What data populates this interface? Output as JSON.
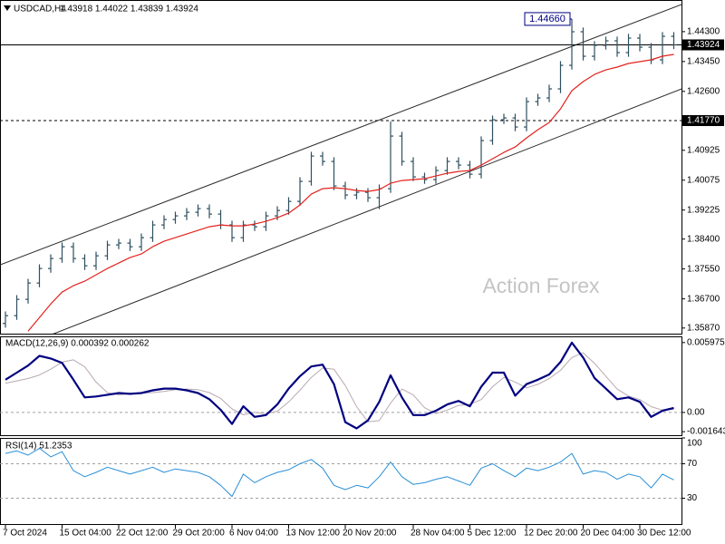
{
  "chart_data": [
    {
      "type": "ohlc",
      "title": "USDCAD,H4",
      "subtitle": "1.43918 1.44022 1.43839 1.43924",
      "color": "#2e5060",
      "open": [
        1.36,
        1.36222,
        1.36686,
        1.3715,
        1.37563,
        1.37847,
        1.38182,
        1.37847,
        1.37641,
        1.37924,
        1.38234,
        1.38286,
        1.38182,
        1.3844,
        1.38802,
        1.38956,
        1.3906,
        1.39163,
        1.39266,
        1.39111,
        1.38802,
        1.3844,
        1.38802,
        1.3875,
        1.3906,
        1.39214,
        1.39472,
        1.4004,
        1.40762,
        1.40608,
        1.39911,
        1.39653,
        1.3973,
        1.39576,
        1.39834,
        1.4133,
        1.40608,
        1.40169,
        1.40092,
        1.4035,
        1.40608,
        1.40504,
        1.40246,
        1.41201,
        1.41794,
        1.41846,
        1.41588,
        1.4231,
        1.42414,
        1.42672,
        1.43342,
        1.44297,
        1.436,
        1.4391,
        1.44039,
        1.43704,
        1.44116,
        1.43858,
        1.43497,
        1.44168
      ],
      "high": [
        1.36342,
        1.36806,
        1.3727,
        1.37683,
        1.37967,
        1.38302,
        1.38302,
        1.37967,
        1.38044,
        1.38354,
        1.38406,
        1.38406,
        1.3856,
        1.38922,
        1.39076,
        1.3918,
        1.39283,
        1.39386,
        1.39386,
        1.39231,
        1.38922,
        1.38922,
        1.38922,
        1.3918,
        1.39334,
        1.39592,
        1.4016,
        1.40882,
        1.40882,
        1.40728,
        1.40031,
        1.3985,
        1.3985,
        1.39954,
        1.41743,
        1.4145,
        1.40728,
        1.40289,
        1.4047,
        1.40728,
        1.40728,
        1.40624,
        1.41321,
        1.41914,
        1.41966,
        1.41966,
        1.4243,
        1.42534,
        1.42792,
        1.43462,
        1.4466,
        1.44417,
        1.4403,
        1.44159,
        1.44159,
        1.44236,
        1.44236,
        1.43978,
        1.44288,
        1.44288
      ],
      "low": [
        1.3588,
        1.36102,
        1.36566,
        1.3703,
        1.37443,
        1.37727,
        1.37727,
        1.37521,
        1.37521,
        1.37804,
        1.38114,
        1.38062,
        1.38062,
        1.3832,
        1.38682,
        1.38836,
        1.3894,
        1.39043,
        1.38991,
        1.38682,
        1.3832,
        1.3832,
        1.3863,
        1.3863,
        1.3894,
        1.39094,
        1.39352,
        1.3992,
        1.40488,
        1.39791,
        1.39533,
        1.39533,
        1.39456,
        1.3925,
        1.39714,
        1.40488,
        1.40049,
        1.39972,
        1.39972,
        1.4023,
        1.40384,
        1.40126,
        1.40126,
        1.41081,
        1.41674,
        1.41468,
        1.41468,
        1.4219,
        1.42294,
        1.42552,
        1.43222,
        1.4348,
        1.4348,
        1.4379,
        1.43584,
        1.43584,
        1.43738,
        1.43377,
        1.43377,
        1.43804
      ],
      "close": [
        1.36222,
        1.36686,
        1.3715,
        1.37563,
        1.37847,
        1.38182,
        1.37847,
        1.37641,
        1.37924,
        1.38234,
        1.38286,
        1.38182,
        1.3844,
        1.38802,
        1.38956,
        1.3906,
        1.39163,
        1.39266,
        1.39111,
        1.38802,
        1.3844,
        1.38802,
        1.3875,
        1.3906,
        1.39214,
        1.39472,
        1.4004,
        1.40762,
        1.40608,
        1.39911,
        1.39653,
        1.3973,
        1.39576,
        1.39834,
        1.4133,
        1.40608,
        1.40169,
        1.40092,
        1.4035,
        1.40608,
        1.40504,
        1.40246,
        1.41201,
        1.41794,
        1.41846,
        1.41588,
        1.4231,
        1.42414,
        1.42672,
        1.43342,
        1.44297,
        1.436,
        1.4391,
        1.44039,
        1.43704,
        1.44116,
        1.43858,
        1.43497,
        1.44168,
        1.43924
      ],
      "moving_average": {
        "color": "#e3231d",
        "values": [
          null,
          null,
          1.35783,
          1.3617,
          1.36557,
          1.36892,
          1.37073,
          1.37202,
          1.37383,
          1.37563,
          1.37718,
          1.37873,
          1.37976,
          1.38182,
          1.38337,
          1.3844,
          1.38544,
          1.38647,
          1.3875,
          1.38802,
          1.38776,
          1.38776,
          1.38827,
          1.38905,
          1.39008,
          1.39137,
          1.39369,
          1.39679,
          1.39834,
          1.39859,
          1.39834,
          1.39782,
          1.39756,
          1.39808,
          1.39988,
          1.40066,
          1.40092,
          1.40117,
          1.40195,
          1.40272,
          1.40324,
          1.4035,
          1.40504,
          1.40685,
          1.40866,
          1.4102,
          1.41278,
          1.41511,
          1.41717,
          1.42104,
          1.4262,
          1.42878,
          1.43084,
          1.43213,
          1.43291,
          1.43394,
          1.43446,
          1.43497,
          1.436,
          1.43652
        ]
      },
      "channel": {
        "color": "#2b2b2b",
        "upper": [
          1.37666,
          1.45071
        ],
        "lower": [
          1.35112,
          1.42672
        ]
      },
      "hlines": [
        {
          "value": 1.43924,
          "label": "1.43924",
          "style": "solid"
        },
        {
          "value": 1.4177,
          "label": "1.41770",
          "style": "dashed"
        }
      ],
      "annotation": {
        "index": 50,
        "value": 1.4466,
        "label": "1.44660"
      },
      "watermark": "Action Forex",
      "ylim": [
        1.3571,
        1.452
      ],
      "yticks": [
        {
          "value": 1.443,
          "label": "1.44300"
        },
        {
          "value": 1.4345,
          "label": "1.43450"
        },
        {
          "value": 1.426,
          "label": "1.42600"
        },
        {
          "value": 1.40925,
          "label": "1.40925"
        },
        {
          "value": 1.40075,
          "label": "1.40075"
        },
        {
          "value": 1.39225,
          "label": "1.39225"
        },
        {
          "value": 1.384,
          "label": "1.38400"
        },
        {
          "value": 1.3755,
          "label": "1.37550"
        },
        {
          "value": 1.367,
          "label": "1.36700"
        },
        {
          "value": 1.3587,
          "label": "1.35870"
        }
      ]
    },
    {
      "type": "line",
      "title": "MACD(12,26,9) 0.000392 0.000262",
      "grid": false,
      "zero_line": true,
      "series": [
        {
          "color": "#000080",
          "width": 2.2,
          "values": [
            0.002797,
            0.003402,
            0.004007,
            0.004838,
            0.004612,
            0.004234,
            0.002797,
            0.001285,
            0.001361,
            0.001512,
            0.001663,
            0.001588,
            0.001663,
            0.00189,
            0.002041,
            0.002041,
            0.00189,
            0.001663,
            0.001134,
            0.000227,
            -0.000983,
            0.000529,
            -0.000378,
            -0.000227,
            0.00068,
            0.002041,
            0.0031,
            0.003931,
            0.004082,
            0.002419,
            -0.000832,
            -0.001361,
            -0.00068,
            0.000907,
            0.003175,
            0.001285,
            -0.000227,
            -0.000227,
            0.000151,
            0.00068,
            0.000983,
            0.000529,
            0.002192,
            0.003402,
            0.003402,
            0.001436,
            0.002419,
            0.002797,
            0.003251,
            0.004309,
            0.005972,
            0.004687,
            0.002948,
            0.002041,
            0.001134,
            0.001285,
            0.000907,
            -0.000378,
            0.000151,
            0.000392
          ]
        },
        {
          "color": "#b9a9b1",
          "width": 1,
          "values": [
            0.0025,
            0.0027,
            0.0029,
            0.0032,
            0.0037,
            0.0043,
            0.0045,
            0.0039,
            0.0026,
            0.0017,
            0.0015,
            0.0016,
            0.00165,
            0.0017,
            0.0018,
            0.00195,
            0.002,
            0.00195,
            0.0017,
            0.0012,
            0.0003,
            -0.0002,
            0.0,
            -0.0001,
            0.0001,
            0.0009,
            0.0019,
            0.003,
            0.0038,
            0.0037,
            0.0023,
            0.0005,
            -0.0008,
            -0.0007,
            0.0008,
            0.002,
            0.0015,
            0.0004,
            -0.0001,
            0.0002,
            0.0006,
            0.0007,
            0.0011,
            0.0022,
            0.003,
            0.0026,
            0.0021,
            0.0024,
            0.0029,
            0.0036,
            0.0047,
            0.0051,
            0.0042,
            0.0031,
            0.002,
            0.0014,
            0.0011,
            0.0005,
            0.0002,
            0.000262
          ]
        }
      ],
      "ylim": [
        -0.001945,
        0.006504
      ],
      "yticks": [
        0.005975,
        {
          "value": 0,
          "label": "0.00"
        },
        -0.001643
      ]
    },
    {
      "type": "line",
      "title": "RSI(14) 51.2353",
      "grid": true,
      "categories": [
        "7 Oct 2024",
        null,
        null,
        null,
        null,
        "15 Oct 04:00",
        null,
        null,
        null,
        null,
        "22 Oct 12:00",
        null,
        null,
        null,
        null,
        "29 Oct 20:00",
        null,
        null,
        null,
        null,
        "6 Nov 04:00",
        null,
        null,
        null,
        null,
        "13 Nov 12:00",
        null,
        null,
        null,
        null,
        "20 Nov 20:00",
        null,
        null,
        null,
        null,
        null,
        "28 Nov 04:00",
        null,
        null,
        null,
        null,
        "5 Dec 12:00",
        null,
        null,
        null,
        null,
        "12 Dec 20:00",
        null,
        null,
        null,
        null,
        "20 Dec 04:00",
        null,
        null,
        null,
        null,
        "30 Dec 12:00",
        null,
        null,
        null
      ],
      "series": [
        {
          "color": "#2a8fd6",
          "width": 1,
          "values": [
            82,
            85,
            80,
            88,
            78,
            84,
            62,
            55,
            60,
            66,
            62,
            58,
            62,
            66,
            60,
            64,
            62,
            60,
            55,
            45,
            32,
            58,
            48,
            55,
            60,
            63,
            70,
            75,
            65,
            45,
            40,
            45,
            42,
            55,
            72,
            55,
            46,
            48,
            52,
            55,
            50,
            45,
            65,
            70,
            62,
            55,
            65,
            62,
            66,
            72,
            82,
            58,
            62,
            60,
            52,
            58,
            55,
            42,
            58,
            51.2353
          ]
        }
      ],
      "ylim": [
        0,
        100
      ],
      "yticks": [
        100,
        70,
        30
      ]
    }
  ]
}
